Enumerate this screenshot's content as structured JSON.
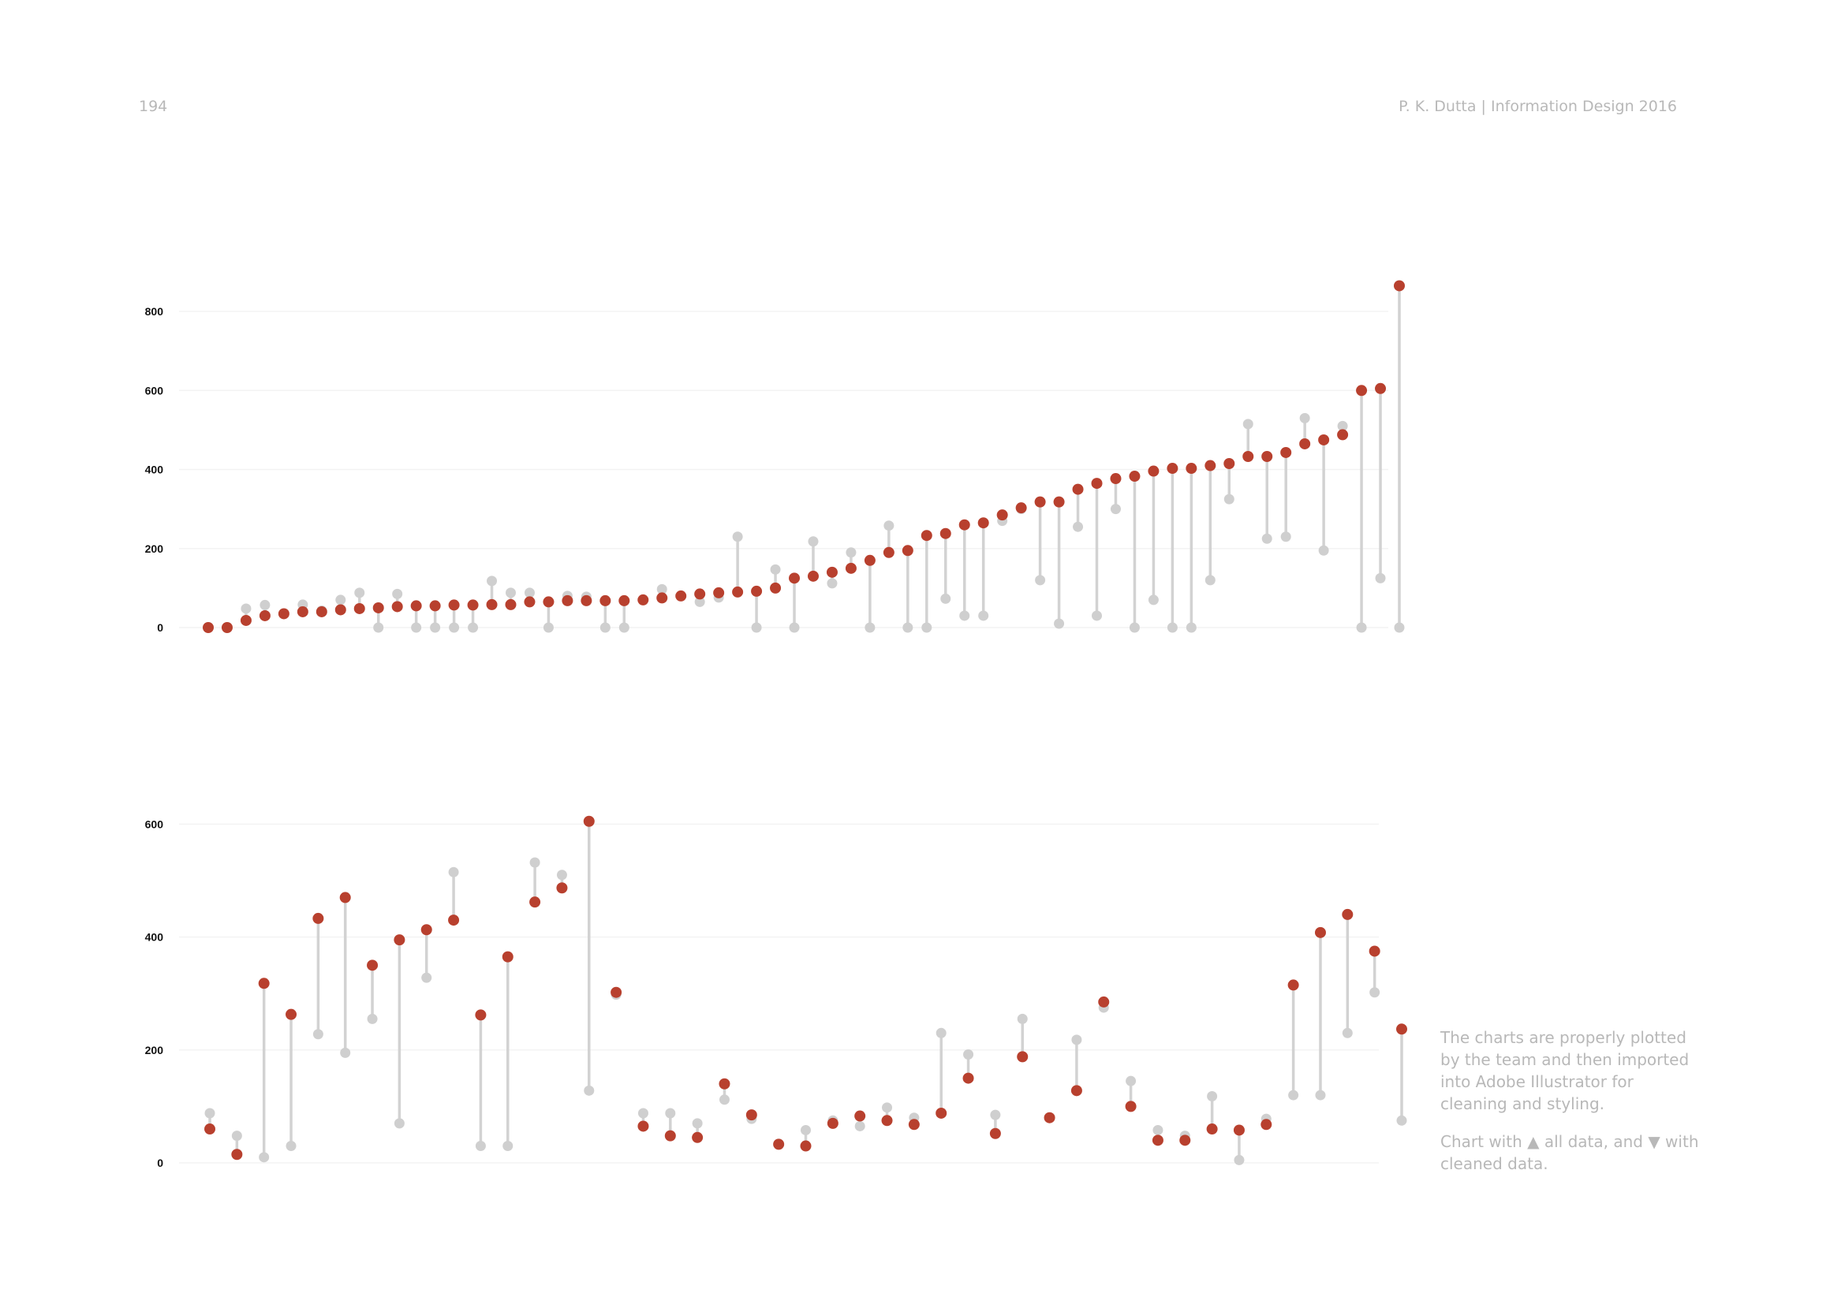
{
  "page": {
    "number": "194",
    "running_header": "P. K. Dutta | Information Design 2016"
  },
  "caption": {
    "paragraph1": "The charts are properly plotted by the team and then imported into Adobe Illustrator for cleaning and styling.",
    "paragraph2": "Chart with ▲ all data, and ▼ with cleaned data."
  },
  "colors": {
    "cleaned_dot": "#b8402e",
    "all_data_dot": "#cfcfcf",
    "connector": "#d2d2d2",
    "gridline": "#f3f3f3"
  },
  "chart_data": [
    {
      "type": "dumbbell",
      "title": "",
      "xlabel": "",
      "ylabel": "",
      "ylim": [
        0,
        850
      ],
      "yticks": [
        0,
        200,
        400,
        600,
        800
      ],
      "grid": true,
      "legend": "none",
      "series": [
        {
          "name": "all data",
          "values": [
            0,
            0,
            48,
            57,
            35,
            58,
            43,
            70,
            88,
            0,
            85,
            0,
            0,
            0,
            0,
            118,
            88,
            88,
            0,
            80,
            78,
            0,
            0,
            70,
            97,
            80,
            65,
            76,
            230,
            0,
            147,
            0,
            218,
            112,
            190,
            0,
            258,
            0,
            0,
            73,
            30,
            30,
            270,
            300,
            120,
            10,
            255,
            30,
            300,
            0,
            70,
            0,
            0,
            120,
            325,
            515,
            225,
            230,
            530,
            195,
            510,
            0,
            125,
            0
          ]
        },
        {
          "name": "cleaned data",
          "values": [
            0,
            0,
            18,
            30,
            35,
            40,
            40,
            45,
            48,
            50,
            53,
            55,
            55,
            57,
            57,
            58,
            58,
            65,
            65,
            68,
            68,
            68,
            68,
            70,
            75,
            80,
            85,
            88,
            90,
            92,
            100,
            125,
            130,
            140,
            150,
            170,
            190,
            195,
            233,
            238,
            260,
            265,
            285,
            303,
            318,
            318,
            350,
            365,
            377,
            383,
            396,
            403,
            403,
            410,
            415,
            433,
            433,
            443,
            465,
            475,
            488,
            600,
            605,
            865
          ]
        }
      ]
    },
    {
      "type": "dumbbell",
      "title": "",
      "xlabel": "",
      "ylabel": "",
      "ylim": [
        0,
        620
      ],
      "yticks": [
        0,
        200,
        400,
        600
      ],
      "grid": true,
      "legend": "none",
      "series": [
        {
          "name": "all data",
          "values": [
            88,
            48,
            10,
            30,
            228,
            195,
            255,
            70,
            328,
            515,
            30,
            30,
            532,
            510,
            128,
            298,
            88,
            88,
            70,
            112,
            78,
            null,
            58,
            75,
            65,
            98,
            80,
            230,
            192,
            85,
            255,
            null,
            218,
            275,
            145,
            58,
            48,
            118,
            5,
            78,
            120,
            120,
            230,
            302,
            75
          ]
        },
        {
          "name": "cleaned data",
          "values": [
            60,
            15,
            318,
            263,
            433,
            470,
            350,
            395,
            413,
            430,
            262,
            365,
            462,
            487,
            605,
            302,
            65,
            48,
            45,
            140,
            85,
            33,
            30,
            70,
            83,
            75,
            68,
            88,
            150,
            52,
            188,
            80,
            128,
            285,
            100,
            40,
            40,
            60,
            58,
            68,
            315,
            408,
            440,
            375,
            237
          ]
        }
      ]
    }
  ]
}
